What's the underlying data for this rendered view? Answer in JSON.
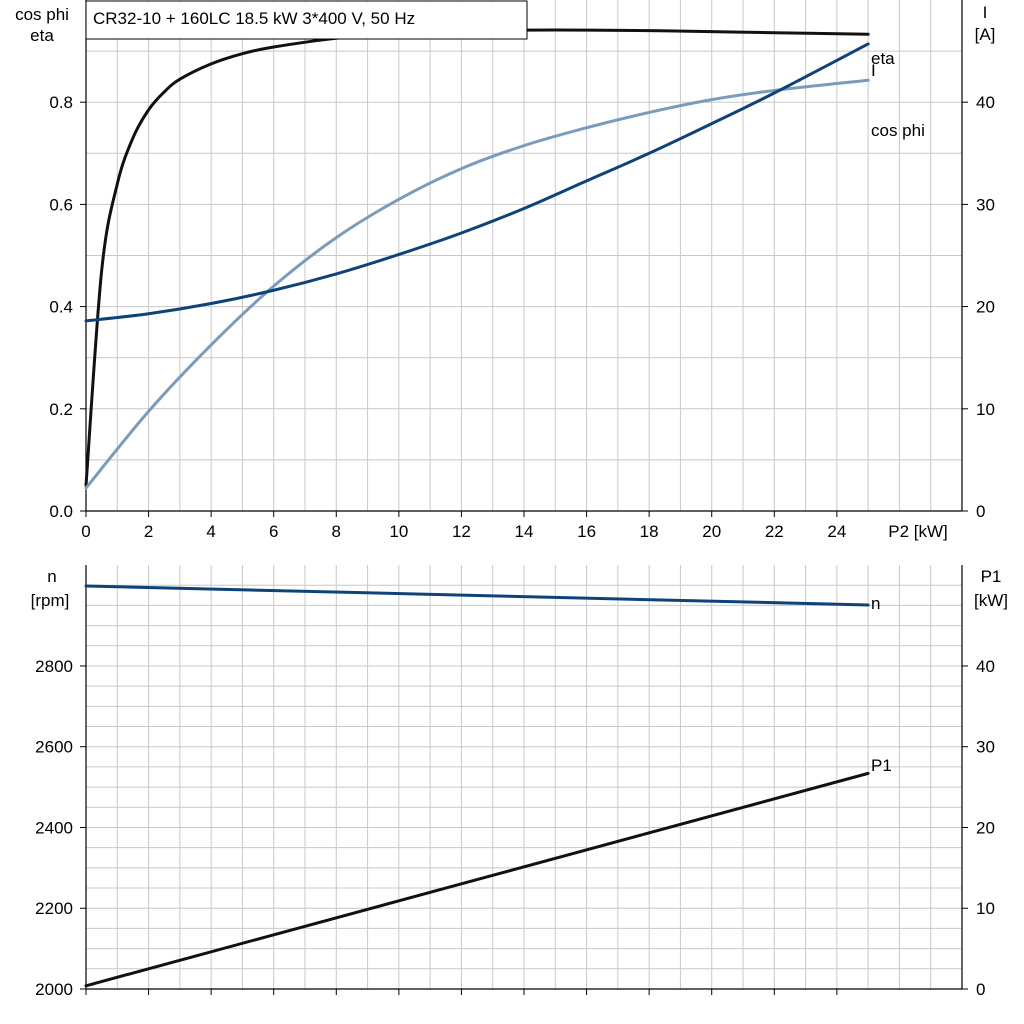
{
  "title_box": "CR32-10 + 160LC   18.5 kW   3*400 V, 50 Hz",
  "colors": {
    "eta": "#111111",
    "cos_phi": "#7a9cbc",
    "I": "#0e4379",
    "n": "#0e4379",
    "P1": "#111111",
    "grid": "#c8c8c8"
  },
  "chart_data": [
    {
      "type": "line",
      "left_axis_label": [
        "cos phi",
        "eta"
      ],
      "right_axis_label": [
        "I",
        "[A]"
      ],
      "xlabel": "P2 [kW]",
      "xlim": [
        0,
        28
      ],
      "ylim_left": [
        0,
        1.0
      ],
      "ylim_right": [
        0,
        50
      ],
      "x_ticks": [
        0,
        2,
        4,
        6,
        8,
        10,
        12,
        14,
        16,
        18,
        20,
        22,
        24
      ],
      "y_ticks_left": [
        "0.0",
        "0.2",
        "0.4",
        "0.6",
        "0.8"
      ],
      "y_ticks_right": [
        "0",
        "10",
        "20",
        "30",
        "40"
      ],
      "grid": true,
      "series": [
        {
          "name": "eta",
          "axis": "left",
          "color_key": "eta",
          "x": [
            0,
            0.5,
            1,
            1.5,
            2,
            2.5,
            3,
            4,
            5,
            6,
            8,
            10,
            12,
            14,
            16,
            18,
            20,
            22,
            25
          ],
          "y": [
            0.05,
            0.47,
            0.64,
            0.73,
            0.785,
            0.82,
            0.845,
            0.875,
            0.895,
            0.908,
            0.925,
            0.934,
            0.939,
            0.941,
            0.941,
            0.94,
            0.938,
            0.936,
            0.933
          ]
        },
        {
          "name": "cos phi",
          "axis": "left",
          "color_key": "cos_phi",
          "x": [
            0,
            2,
            4,
            6,
            8,
            10,
            12,
            14,
            16,
            18,
            20,
            22,
            25
          ],
          "y": [
            0.045,
            0.195,
            0.325,
            0.44,
            0.535,
            0.61,
            0.67,
            0.715,
            0.75,
            0.78,
            0.805,
            0.823,
            0.843
          ]
        },
        {
          "name": "I",
          "axis": "right",
          "color_key": "I",
          "x": [
            0,
            2,
            4,
            6,
            8,
            10,
            12,
            14,
            16,
            18,
            20,
            22,
            25
          ],
          "y": [
            18.6,
            19.3,
            20.3,
            21.6,
            23.2,
            25.1,
            27.2,
            29.6,
            32.3,
            35.0,
            37.9,
            40.9,
            45.7
          ]
        }
      ]
    },
    {
      "type": "line",
      "left_axis_label": [
        "n",
        "[rpm]"
      ],
      "right_axis_label": [
        "P1",
        "[kW]"
      ],
      "xlim": [
        0,
        28
      ],
      "ylim_left": [
        2000,
        3050
      ],
      "ylim_right": [
        0,
        52.5
      ],
      "x_ticks": [
        0,
        2,
        4,
        6,
        8,
        10,
        12,
        14,
        16,
        18,
        20,
        22,
        24
      ],
      "y_ticks_left": [
        "2000",
        "2200",
        "2400",
        "2600",
        "2800"
      ],
      "y_ticks_right": [
        "0",
        "10",
        "20",
        "30",
        "40"
      ],
      "grid": true,
      "series": [
        {
          "name": "n",
          "axis": "left",
          "color_key": "n",
          "x": [
            0,
            25
          ],
          "y": [
            2998,
            2951
          ]
        },
        {
          "name": "P1",
          "axis": "right",
          "color_key": "P1",
          "x": [
            0,
            25
          ],
          "y": [
            0.4,
            26.7
          ]
        }
      ]
    }
  ]
}
